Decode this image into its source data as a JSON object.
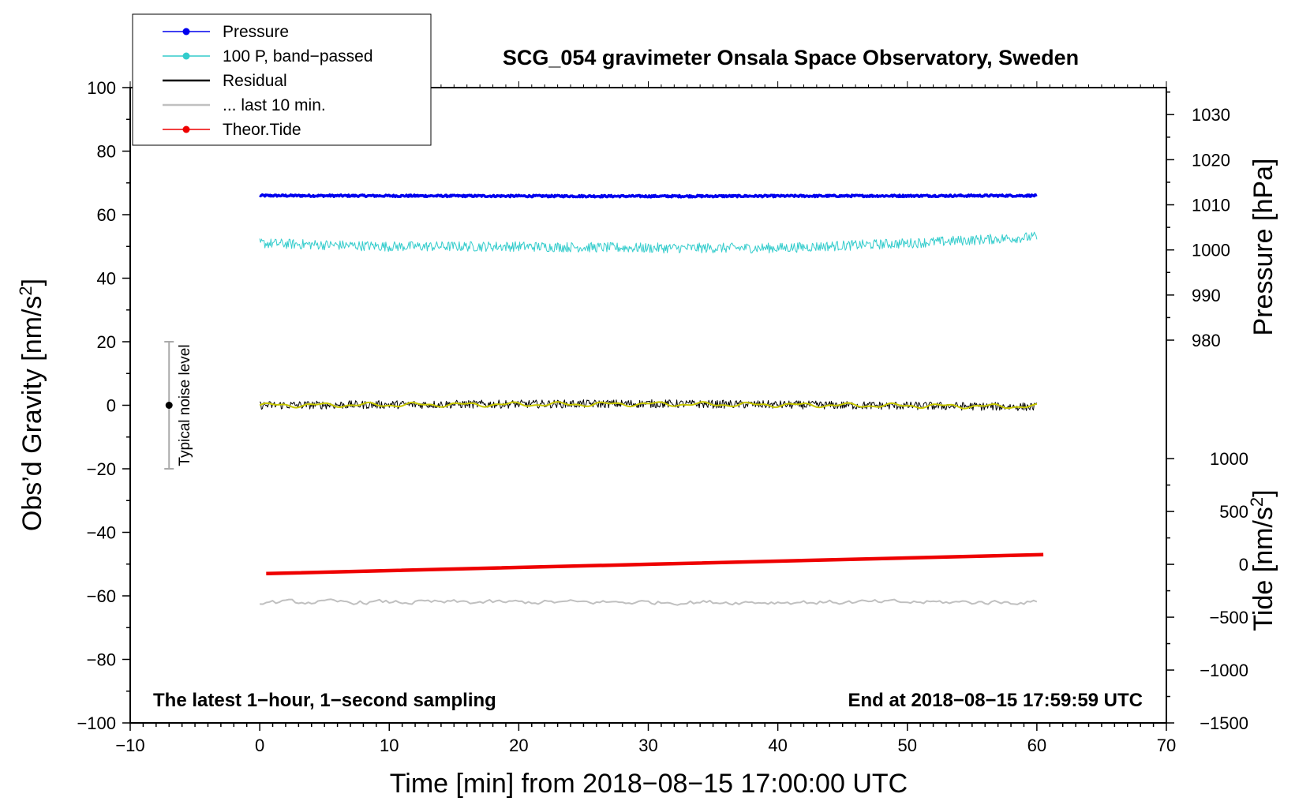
{
  "chart_data": {
    "type": "line",
    "title": "SCG_054 gravimeter Onsala Space Observatory, Sweden",
    "xlabel": "Time [min] from 2018−08−15 17:00:00 UTC",
    "ylabel_left": "Obs’d Gravity [nm/s",
    "ylabel_left_sup": "2",
    "ylabel_left_close": "]",
    "ylabel_pressure": "Pressure [hPa]",
    "ylabel_tide": "Tide [nm/s",
    "ylabel_tide_sup": "2",
    "ylabel_tide_close": "]",
    "xlim": [
      -10,
      70
    ],
    "ylim": [
      -100,
      100
    ],
    "x_ticks": [
      -10,
      0,
      10,
      20,
      30,
      40,
      50,
      60,
      70
    ],
    "x_tick_labels": [
      "−10",
      "0",
      "10",
      "20",
      "30",
      "40",
      "50",
      "60",
      "70"
    ],
    "y_ticks": [
      -100,
      -80,
      -60,
      -40,
      -20,
      0,
      20,
      40,
      60,
      80,
      100
    ],
    "y_tick_labels": [
      "−100",
      "−80",
      "−60",
      "−40",
      "−20",
      "0",
      "20",
      "40",
      "60",
      "80",
      "100"
    ],
    "pressure_axis": {
      "ticks": [
        980,
        990,
        1000,
        1010,
        1020,
        1030
      ],
      "tick_labels": [
        "980",
        "990",
        "1000",
        "1010",
        "1020",
        "1030"
      ],
      "map": {
        "value_a": 980,
        "gravity_a": 20.5,
        "value_b": 1030,
        "gravity_b": 91.5
      }
    },
    "tide_axis": {
      "ticks": [
        -1500,
        -1000,
        -500,
        0,
        500,
        1000
      ],
      "tick_labels": [
        "−1500",
        "−1000",
        "−500",
        "0",
        "500",
        "1000"
      ],
      "map": {
        "value_a": -1500,
        "gravity_a": -100,
        "value_b": 1000,
        "gravity_b": -16.8
      }
    },
    "series": [
      {
        "name": "Pressure",
        "color": "#0000ee",
        "x": [
          0,
          30,
          60
        ],
        "y": [
          66,
          65.8,
          66
        ],
        "noise": 0.3,
        "width": 3.5
      },
      {
        "name": "100 P, band−passed",
        "color": "#33cccc",
        "x": [
          0,
          10,
          20,
          30,
          40,
          50,
          60
        ],
        "y": [
          51,
          50,
          50,
          49.5,
          49.5,
          51,
          53
        ],
        "noise": 1.6,
        "width": 1
      },
      {
        "name": "Residual",
        "color": "#000000",
        "x": [
          0,
          15,
          30,
          45,
          60
        ],
        "y": [
          0,
          0.3,
          0.5,
          0,
          -0.5
        ],
        "noise": 1.3,
        "width": 1
      },
      {
        "name": "... last 10 min.",
        "color": "#c0c0c0",
        "x": [
          0,
          60
        ],
        "y": [
          -62,
          -62
        ],
        "noise": 1.2,
        "width": 2
      },
      {
        "name": "Theor.Tide",
        "color": "#ee0000",
        "x": [
          0.5,
          60.5
        ],
        "y": [
          -53,
          -47
        ],
        "noise": 0,
        "width": 4.5
      }
    ],
    "smooth_residual": {
      "color": "#c8c800",
      "x": [
        0,
        15,
        30,
        45,
        60
      ],
      "y": [
        0,
        0.2,
        0.4,
        0,
        -0.4
      ]
    },
    "legend": {
      "position": "top-left",
      "entries": [
        {
          "label": "Pressure",
          "color": "#0000ee",
          "marker": true
        },
        {
          "label": "100 P, band−passed",
          "color": "#33cccc",
          "marker": true
        },
        {
          "label": "Residual",
          "color": "#000000",
          "marker": false
        },
        {
          "label": "... last 10 min.",
          "color": "#c0c0c0",
          "marker": false
        },
        {
          "label": "Theor.Tide",
          "color": "#ee0000",
          "marker": true
        }
      ]
    },
    "noise_level": {
      "label": "Typical noise level",
      "x": -7,
      "center": 0,
      "low": -20,
      "high": 20
    },
    "annotations": {
      "bottom_left": "The latest 1−hour, 1−second sampling",
      "bottom_right": "End at 2018−08−15 17:59:59 UTC"
    }
  }
}
